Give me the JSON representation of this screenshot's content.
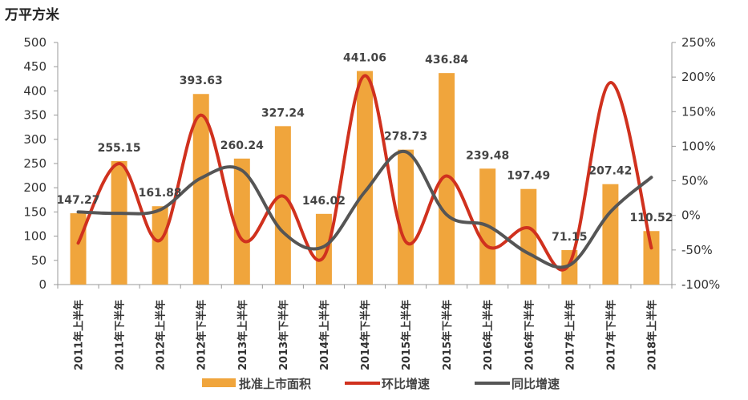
{
  "chart_data": {
    "type": "bar+line",
    "unit_label": "万平方米",
    "categories": [
      "2011年上半年",
      "2011年下半年",
      "2012年上半年",
      "2012年下半年",
      "2013年上半年",
      "2013年下半年",
      "2014年上半年",
      "2014年下半年",
      "2015年上半年",
      "2015年下半年",
      "2016年上半年",
      "2016年下半年",
      "2017年上半年",
      "2017年下半年",
      "2018年上半年"
    ],
    "series": [
      {
        "name": "批准上市面积",
        "type": "bar",
        "axis": "left",
        "color": "#F0A53C",
        "values": [
          147.27,
          255.15,
          161.88,
          393.63,
          260.24,
          327.24,
          146.02,
          441.06,
          278.73,
          436.84,
          239.48,
          197.49,
          71.15,
          207.42,
          110.52
        ]
      },
      {
        "name": "环比增速",
        "type": "line",
        "axis": "right",
        "color": "#D0311E",
        "values": [
          -40,
          75,
          -36,
          145,
          -35,
          28,
          -60,
          202,
          -38,
          57,
          -45,
          -18,
          -70,
          192,
          -47
        ]
      },
      {
        "name": "同比增速",
        "type": "line",
        "axis": "right",
        "color": "#555555",
        "values": [
          5,
          3,
          8,
          54,
          65,
          -24,
          -45,
          34,
          92,
          1,
          -15,
          -55,
          -72,
          5,
          55
        ]
      }
    ],
    "ylim_left": [
      0,
      500
    ],
    "yticks_left": [
      "0",
      "50",
      "100",
      "150",
      "200",
      "250",
      "300",
      "350",
      "400",
      "450",
      "500"
    ],
    "ylim_right": [
      -100,
      250
    ],
    "yticks_right": [
      "-100%",
      "-50%",
      "0%",
      "50%",
      "100%",
      "150%",
      "200%",
      "250%"
    ],
    "legend": "bottom"
  }
}
